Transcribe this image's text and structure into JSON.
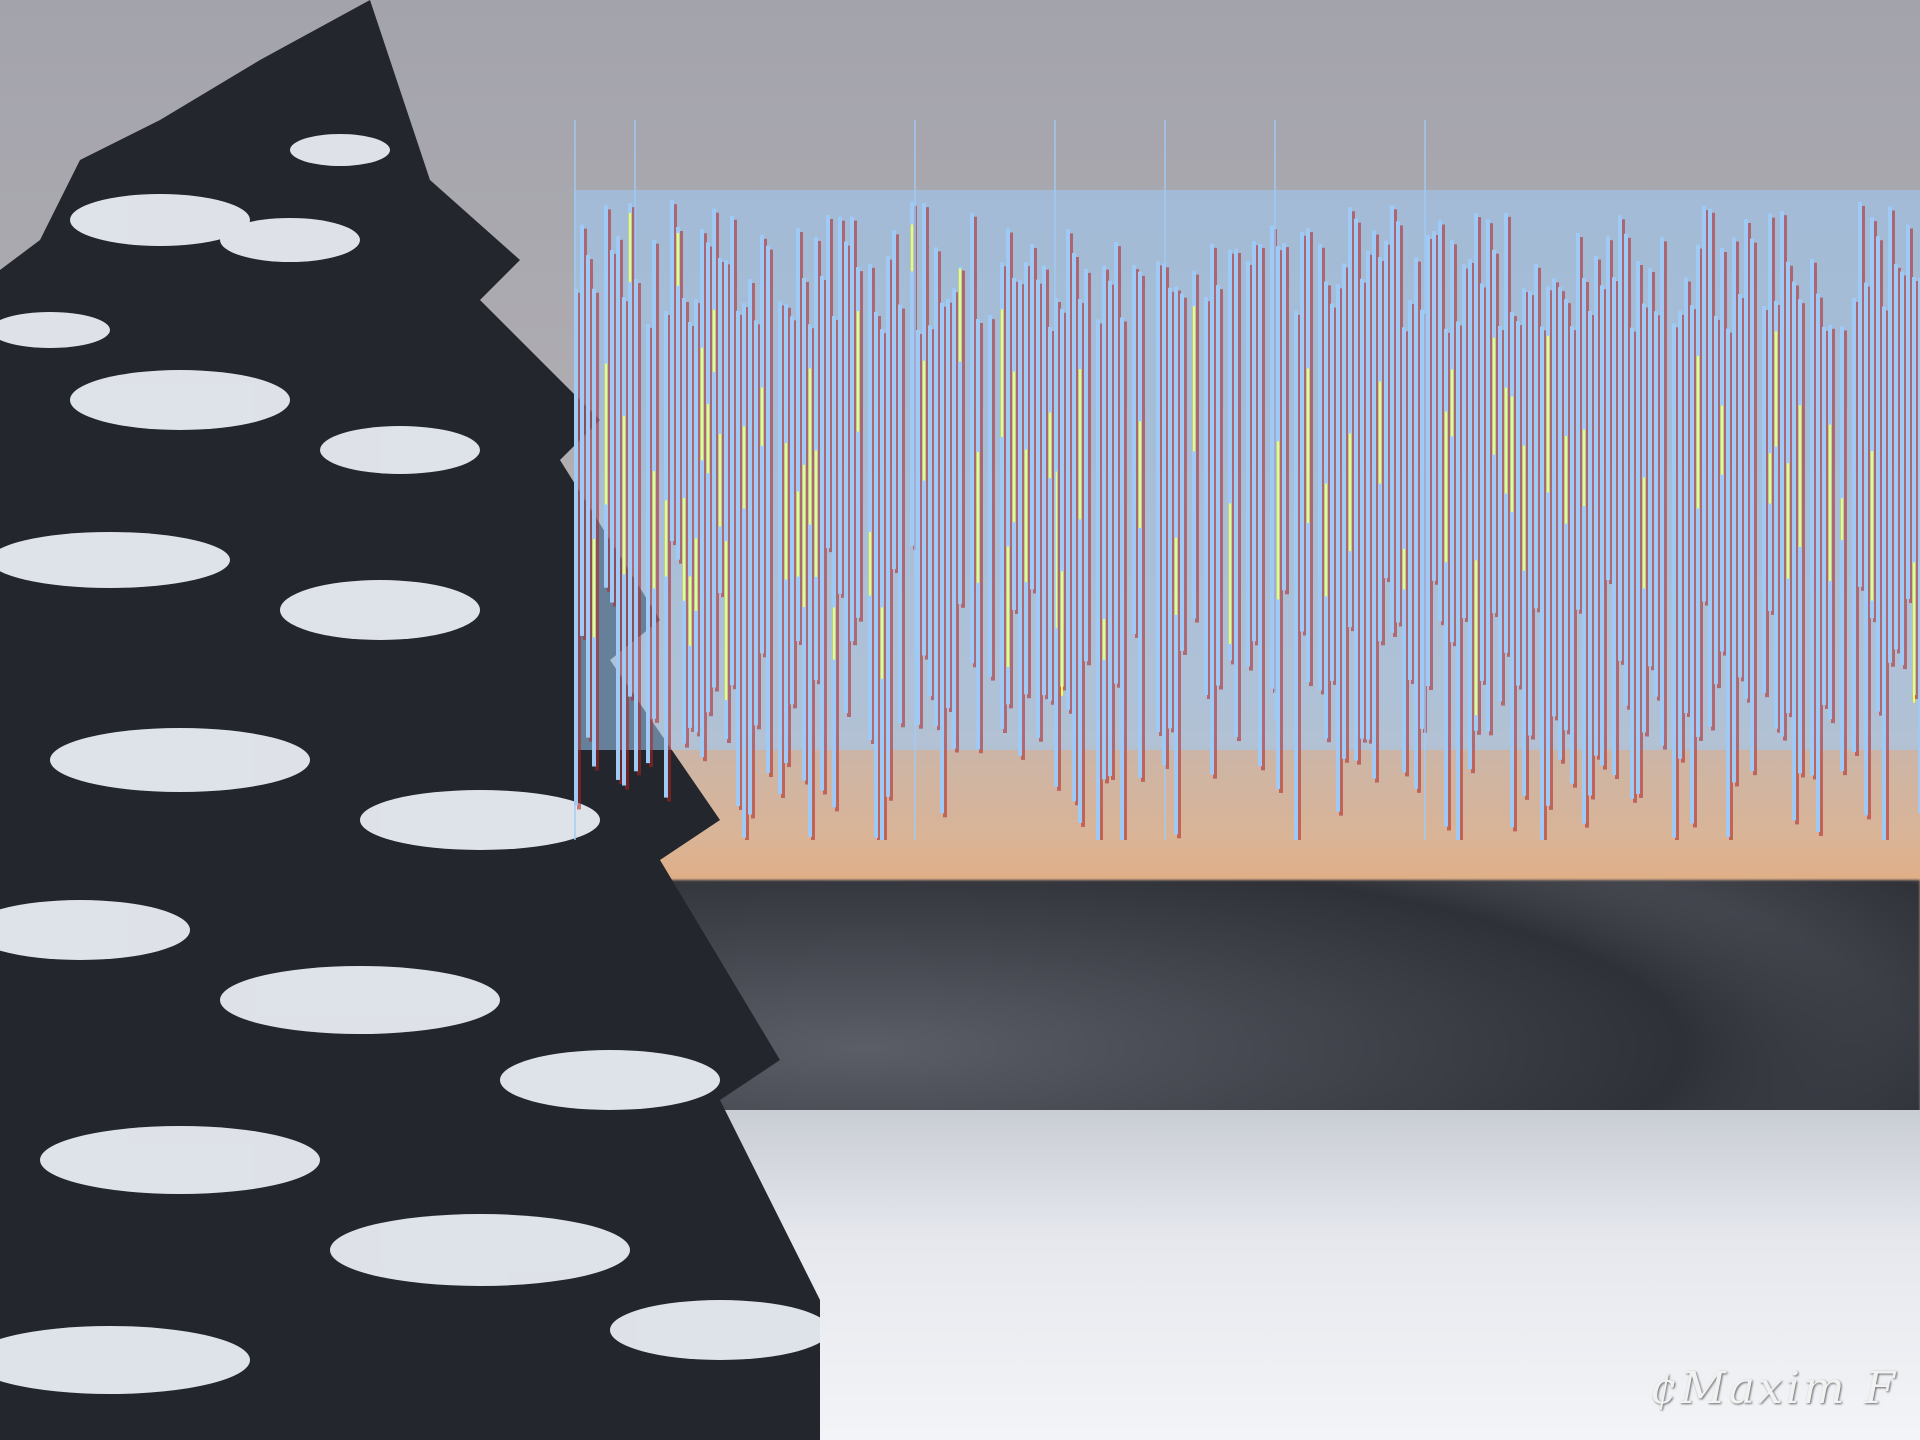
{
  "photo": {
    "subject": "snow-covered-pine-forest",
    "colors": {
      "sky": "#a3a3ac",
      "glow": "#e8a872",
      "snow": "#f3f4f7",
      "pine": "#2a2d33"
    }
  },
  "overlay": {
    "description_hidden": true,
    "colors": {
      "bars": "#9fcaf6",
      "accent": "#ffff33",
      "shadow": "#b02020"
    }
  },
  "watermark": {
    "text": "¢Maxim F"
  }
}
